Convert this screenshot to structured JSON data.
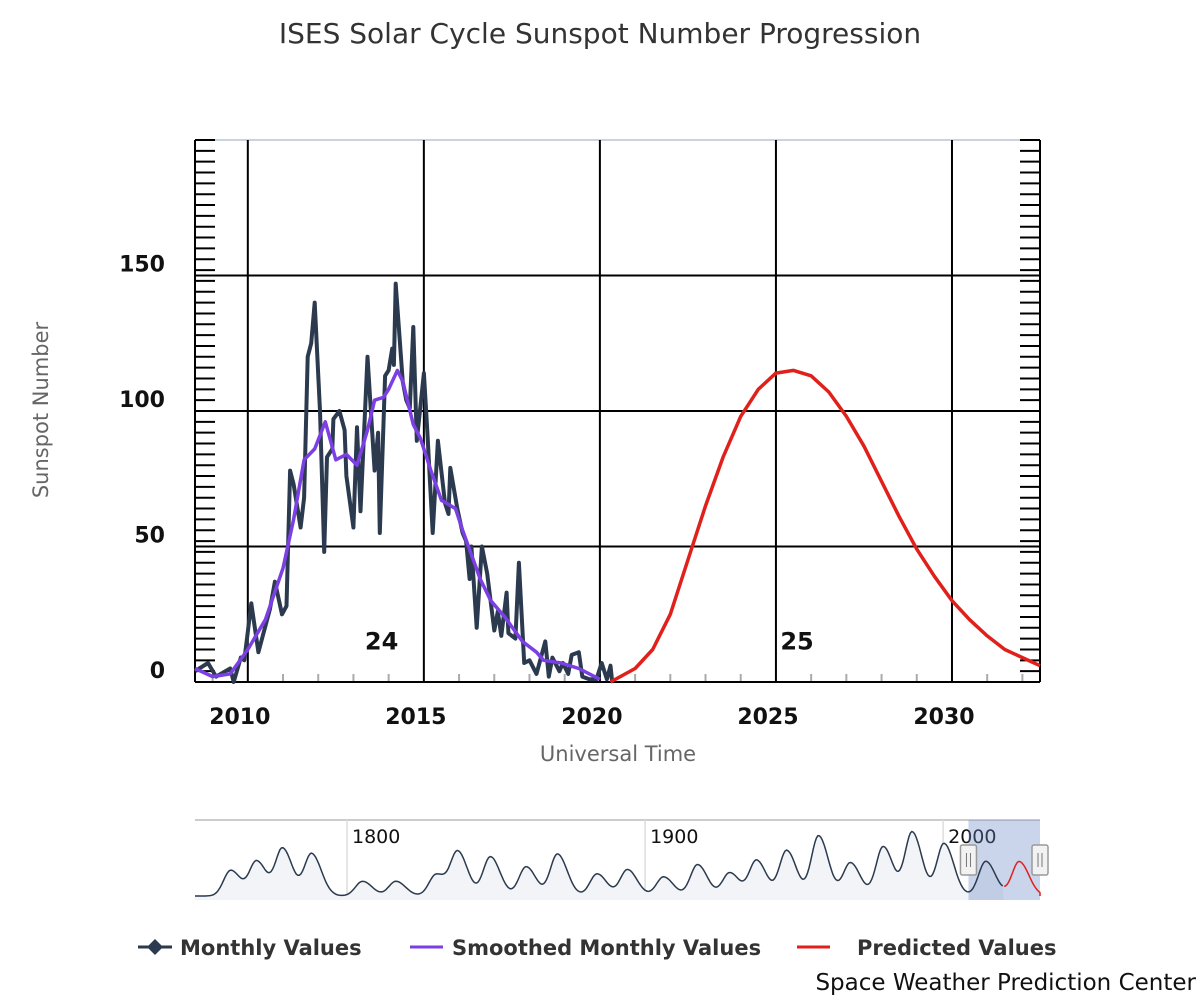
{
  "chart_data": {
    "type": "line",
    "title": "ISES Solar Cycle Sunspot Number Progression",
    "xlabel": "Universal Time",
    "ylabel": "Sunspot Number",
    "xlim": [
      2008.5,
      2032.5
    ],
    "ylim": [
      0,
      200
    ],
    "x_ticks": [
      2010,
      2015,
      2020,
      2025,
      2030
    ],
    "x_tick_labels": [
      "2010",
      "2015",
      "2020",
      "2025",
      "2030"
    ],
    "y_ticks": [
      0,
      50,
      100,
      150
    ],
    "y_tick_labels": [
      "0",
      "50",
      "100",
      "150"
    ],
    "grid": true,
    "legend_position": "bottom",
    "cycle_labels": [
      {
        "text": "24",
        "x": 2013.8,
        "y": 12
      },
      {
        "text": "25",
        "x": 2025.6,
        "y": 12
      }
    ],
    "series": [
      {
        "name": "Monthly Values",
        "color": "#2b3a4e",
        "marker": "diamond",
        "x": [
          2008.5,
          2008.87,
          2009.1,
          2009.5,
          2009.6,
          2009.8,
          2009.9,
          2010.1,
          2010.3,
          2010.63,
          2010.77,
          2010.97,
          2011.1,
          2011.2,
          2011.3,
          2011.5,
          2011.6,
          2011.7,
          2011.8,
          2011.9,
          2012.05,
          2012.17,
          2012.25,
          2012.4,
          2012.43,
          2012.6,
          2012.75,
          2012.8,
          2013.0,
          2013.1,
          2013.2,
          2013.4,
          2013.6,
          2013.7,
          2013.75,
          2013.9,
          2014.0,
          2014.1,
          2014.15,
          2014.2,
          2014.4,
          2014.5,
          2014.6,
          2014.7,
          2014.8,
          2015.0,
          2015.1,
          2015.25,
          2015.4,
          2015.6,
          2015.7,
          2015.75,
          2015.95,
          2016.1,
          2016.2,
          2016.3,
          2016.35,
          2016.5,
          2016.65,
          2016.8,
          2017.0,
          2017.1,
          2017.2,
          2017.35,
          2017.4,
          2017.6,
          2017.7,
          2017.85,
          2018.0,
          2018.2,
          2018.45,
          2018.55,
          2018.65,
          2018.85,
          2018.95,
          2019.1,
          2019.2,
          2019.4,
          2019.5,
          2019.7,
          2019.9,
          2020.05,
          2020.2,
          2020.3,
          2020.35
        ],
        "y": [
          4,
          7,
          2,
          5,
          0,
          9,
          8,
          29,
          11,
          27,
          37,
          25,
          28,
          78,
          73,
          57,
          68,
          120,
          125,
          140,
          100,
          48,
          83,
          86,
          97,
          100,
          93,
          76,
          57,
          94,
          63,
          120,
          78,
          92,
          55,
          113,
          115,
          123,
          117,
          147,
          111,
          104,
          101,
          131,
          89,
          114,
          92,
          55,
          89,
          66,
          62,
          79,
          64,
          55,
          52,
          38,
          50,
          20,
          50,
          40,
          19,
          26,
          17,
          33,
          18,
          16,
          44,
          7,
          8,
          3,
          15,
          2,
          9,
          4,
          7,
          3,
          10,
          11,
          2,
          1,
          1,
          7,
          1,
          6,
          0
        ]
      },
      {
        "name": "Smoothed Monthly Values",
        "color": "#7b3fe4",
        "x": [
          2008.5,
          2009.0,
          2009.5,
          2010.0,
          2010.5,
          2011.0,
          2011.3,
          2011.6,
          2011.9,
          2012.2,
          2012.5,
          2012.8,
          2013.1,
          2013.4,
          2013.6,
          2013.85,
          2014.0,
          2014.25,
          2014.4,
          2014.7,
          2014.9,
          2015.2,
          2015.5,
          2015.9,
          2016.1,
          2016.6,
          2016.9,
          2017.3,
          2017.8,
          2018.2,
          2018.4,
          2018.9,
          2019.4,
          2020.0
        ],
        "y": [
          5,
          2,
          3,
          12,
          23,
          42,
          60,
          82,
          86,
          96,
          82,
          84,
          80,
          93,
          104,
          105,
          108,
          115,
          111,
          95,
          90,
          78,
          67,
          64,
          56,
          38,
          30,
          24,
          15,
          11,
          8,
          7,
          5,
          1
        ]
      },
      {
        "name": "Predicted Values",
        "color": "#e0201b",
        "x": [
          2020.3,
          2021.0,
          2021.5,
          2022.0,
          2022.5,
          2023.0,
          2023.5,
          2024.0,
          2024.5,
          2025.0,
          2025.5,
          2026.0,
          2026.5,
          2027.0,
          2027.5,
          2028.0,
          2028.5,
          2029.0,
          2029.5,
          2030.0,
          2030.5,
          2031.0,
          2031.5,
          2032.0,
          2032.5
        ],
        "y": [
          0,
          5,
          12,
          25,
          45,
          65,
          83,
          98,
          108,
          114,
          115,
          113,
          107,
          98,
          87,
          74,
          61,
          49,
          39,
          30,
          23,
          17,
          12,
          9,
          6
        ]
      }
    ],
    "navigator": {
      "range": [
        1749,
        2032.5
      ],
      "selected_range": [
        2008.5,
        2032.5
      ],
      "labels": [
        "1800",
        "1900",
        "2000"
      ],
      "label_years": [
        1800,
        1900,
        2000
      ],
      "cycle_peaks_year": [
        1761,
        1769.7,
        1778.4,
        1788.1,
        1805.2,
        1816.4,
        1829.9,
        1837.2,
        1848.1,
        1860.1,
        1870.6,
        1883.9,
        1894.1,
        1906.2,
        1917.6,
        1928.4,
        1937.4,
        1947.5,
        1958.2,
        1968.9,
        1979.9,
        1989.6,
        2000.3,
        2014.3,
        2025.5
      ],
      "cycle_peaks_value": [
        86,
        116,
        158,
        141,
        49,
        49,
        72,
        146,
        131,
        98,
        140,
        74,
        88,
        64,
        105,
        78,
        119,
        152,
        201,
        111,
        165,
        213,
        175,
        116,
        115
      ]
    }
  },
  "credit": "Space Weather Prediction Center"
}
